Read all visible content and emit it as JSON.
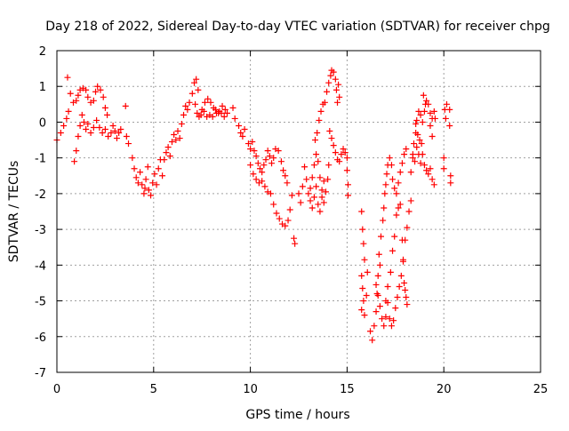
{
  "chart_data": {
    "type": "scatter",
    "title": "Day 218 of 2022, Sidereal Day-to-day VTEC variation (SDTVAR) for receiver chpg",
    "xlabel": "GPS time / hours",
    "ylabel": "SDTVAR / TECUs",
    "xlim": [
      0,
      25
    ],
    "ylim": [
      -7,
      2
    ],
    "x_ticks": [
      0,
      5,
      10,
      15,
      20,
      25
    ],
    "y_ticks": [
      2,
      1,
      0,
      -1,
      -2,
      -3,
      -4,
      -5,
      -6,
      -7
    ],
    "grid": true,
    "legend": "none",
    "marker": "plus",
    "color": "#ff0000",
    "series": [
      {
        "points": [
          [
            0.0,
            -0.5
          ],
          [
            0.2,
            -0.3
          ],
          [
            0.35,
            -0.1
          ],
          [
            0.5,
            0.1
          ],
          [
            0.6,
            0.3
          ],
          [
            0.55,
            1.25
          ],
          [
            0.7,
            0.8
          ],
          [
            0.85,
            0.55
          ],
          [
            1.0,
            0.6
          ],
          [
            1.1,
            0.75
          ],
          [
            1.2,
            0.9
          ],
          [
            1.35,
            0.95
          ],
          [
            1.5,
            0.9
          ],
          [
            1.6,
            0.7
          ],
          [
            1.75,
            0.55
          ],
          [
            1.9,
            0.6
          ],
          [
            2.0,
            0.85
          ],
          [
            2.1,
            1.0
          ],
          [
            2.25,
            0.9
          ],
          [
            2.4,
            0.7
          ],
          [
            2.5,
            0.4
          ],
          [
            2.6,
            0.2
          ],
          [
            0.9,
            -1.1
          ],
          [
            1.0,
            -0.8
          ],
          [
            1.1,
            -0.4
          ],
          [
            1.2,
            -0.1
          ],
          [
            1.3,
            0.2
          ],
          [
            1.4,
            0.0
          ],
          [
            1.5,
            -0.2
          ],
          [
            1.6,
            -0.05
          ],
          [
            1.75,
            -0.3
          ],
          [
            1.9,
            -0.15
          ],
          [
            2.05,
            0.05
          ],
          [
            2.2,
            -0.15
          ],
          [
            2.35,
            -0.3
          ],
          [
            2.5,
            -0.2
          ],
          [
            2.65,
            -0.4
          ],
          [
            2.8,
            -0.3
          ],
          [
            2.9,
            -0.1
          ],
          [
            3.0,
            -0.25
          ],
          [
            3.1,
            -0.45
          ],
          [
            3.2,
            -0.3
          ],
          [
            3.3,
            -0.2
          ],
          [
            3.55,
            0.45
          ],
          [
            3.6,
            -0.4
          ],
          [
            3.7,
            -0.6
          ],
          [
            3.9,
            -1.0
          ],
          [
            4.0,
            -1.3
          ],
          [
            4.1,
            -1.55
          ],
          [
            4.2,
            -1.7
          ],
          [
            4.3,
            -1.4
          ],
          [
            4.4,
            -1.75
          ],
          [
            4.5,
            -2.0
          ],
          [
            4.6,
            -1.6
          ],
          [
            4.7,
            -1.25
          ],
          [
            4.55,
            -1.85
          ],
          [
            4.75,
            -1.9
          ],
          [
            4.85,
            -2.05
          ],
          [
            4.95,
            -1.7
          ],
          [
            5.05,
            -1.45
          ],
          [
            5.15,
            -1.75
          ],
          [
            5.25,
            -1.3
          ],
          [
            5.35,
            -1.05
          ],
          [
            5.45,
            -1.5
          ],
          [
            5.55,
            -1.05
          ],
          [
            5.65,
            -0.85
          ],
          [
            5.75,
            -0.7
          ],
          [
            5.85,
            -0.95
          ],
          [
            5.95,
            -0.55
          ],
          [
            6.05,
            -0.35
          ],
          [
            6.15,
            -0.5
          ],
          [
            6.25,
            -0.25
          ],
          [
            6.35,
            -0.45
          ],
          [
            6.45,
            -0.05
          ],
          [
            6.55,
            0.2
          ],
          [
            6.65,
            0.45
          ],
          [
            6.75,
            0.35
          ],
          [
            6.85,
            0.55
          ],
          [
            7.0,
            0.8
          ],
          [
            7.1,
            1.1
          ],
          [
            7.2,
            1.2
          ],
          [
            7.3,
            0.9
          ],
          [
            7.15,
            0.5
          ],
          [
            7.25,
            0.25
          ],
          [
            7.35,
            0.15
          ],
          [
            7.5,
            0.35
          ],
          [
            7.65,
            0.55
          ],
          [
            7.8,
            0.65
          ],
          [
            7.95,
            0.55
          ],
          [
            8.1,
            0.4
          ],
          [
            8.25,
            0.25
          ],
          [
            8.4,
            0.3
          ],
          [
            8.55,
            0.45
          ],
          [
            8.7,
            0.35
          ],
          [
            8.8,
            0.25
          ],
          [
            7.45,
            0.2
          ],
          [
            7.6,
            0.3
          ],
          [
            7.75,
            0.15
          ],
          [
            7.9,
            0.2
          ],
          [
            8.05,
            0.15
          ],
          [
            8.2,
            0.35
          ],
          [
            8.35,
            0.25
          ],
          [
            8.5,
            0.25
          ],
          [
            8.65,
            0.15
          ],
          [
            9.1,
            0.4
          ],
          [
            9.2,
            0.1
          ],
          [
            9.4,
            -0.1
          ],
          [
            9.5,
            -0.3
          ],
          [
            9.6,
            -0.4
          ],
          [
            9.7,
            -0.2
          ],
          [
            9.9,
            -0.6
          ],
          [
            10.0,
            -0.75
          ],
          [
            10.1,
            -0.55
          ],
          [
            10.2,
            -0.8
          ],
          [
            10.3,
            -0.95
          ],
          [
            10.4,
            -1.15
          ],
          [
            10.5,
            -1.3
          ],
          [
            10.6,
            -1.4
          ],
          [
            10.7,
            -1.2
          ],
          [
            10.8,
            -1.05
          ],
          [
            10.9,
            -0.8
          ],
          [
            11.0,
            -0.95
          ],
          [
            11.1,
            -1.15
          ],
          [
            11.2,
            -1.0
          ],
          [
            11.3,
            -0.75
          ],
          [
            11.45,
            -0.8
          ],
          [
            11.6,
            -1.1
          ],
          [
            11.7,
            -1.35
          ],
          [
            11.8,
            -1.5
          ],
          [
            11.9,
            -1.7
          ],
          [
            10.0,
            -1.2
          ],
          [
            10.15,
            -1.45
          ],
          [
            10.3,
            -1.6
          ],
          [
            10.45,
            -1.7
          ],
          [
            10.6,
            -1.65
          ],
          [
            10.75,
            -1.8
          ],
          [
            10.9,
            -1.95
          ],
          [
            11.05,
            -2.0
          ],
          [
            11.2,
            -2.3
          ],
          [
            11.35,
            -2.55
          ],
          [
            11.5,
            -2.7
          ],
          [
            11.65,
            -2.85
          ],
          [
            11.8,
            -2.9
          ],
          [
            11.95,
            -2.75
          ],
          [
            12.05,
            -2.45
          ],
          [
            12.15,
            -2.05
          ],
          [
            12.25,
            -3.25
          ],
          [
            12.3,
            -3.4
          ],
          [
            12.5,
            -2.0
          ],
          [
            12.6,
            -2.25
          ],
          [
            12.7,
            -1.8
          ],
          [
            12.8,
            -1.25
          ],
          [
            12.9,
            -1.6
          ],
          [
            13.0,
            -2.0
          ],
          [
            13.1,
            -1.85
          ],
          [
            13.2,
            -1.55
          ],
          [
            13.3,
            -1.2
          ],
          [
            13.4,
            -0.9
          ],
          [
            13.5,
            -1.1
          ],
          [
            13.6,
            -1.55
          ],
          [
            13.7,
            -1.9
          ],
          [
            13.8,
            -2.25
          ],
          [
            13.9,
            -1.95
          ],
          [
            14.0,
            -1.6
          ],
          [
            14.05,
            -1.2
          ],
          [
            13.1,
            -2.2
          ],
          [
            13.2,
            -2.4
          ],
          [
            13.3,
            -2.1
          ],
          [
            13.4,
            -1.8
          ],
          [
            13.5,
            -2.3
          ],
          [
            13.6,
            -2.5
          ],
          [
            13.7,
            -2.1
          ],
          [
            13.8,
            -1.65
          ],
          [
            13.35,
            -0.5
          ],
          [
            13.45,
            -0.3
          ],
          [
            13.55,
            0.05
          ],
          [
            13.65,
            0.3
          ],
          [
            13.75,
            0.5
          ],
          [
            13.85,
            0.55
          ],
          [
            13.95,
            0.85
          ],
          [
            14.05,
            1.1
          ],
          [
            14.15,
            1.3
          ],
          [
            14.2,
            1.45
          ],
          [
            14.3,
            1.4
          ],
          [
            14.4,
            1.2
          ],
          [
            14.45,
            0.9
          ],
          [
            14.5,
            0.55
          ],
          [
            14.55,
            1.05
          ],
          [
            14.6,
            0.7
          ],
          [
            14.1,
            -0.25
          ],
          [
            14.2,
            -0.45
          ],
          [
            14.3,
            -0.65
          ],
          [
            14.4,
            -0.85
          ],
          [
            14.5,
            -1.05
          ],
          [
            14.6,
            -1.1
          ],
          [
            14.7,
            -0.9
          ],
          [
            14.8,
            -0.75
          ],
          [
            14.9,
            -0.85
          ],
          [
            15.0,
            -1.0
          ],
          [
            15.0,
            -1.35
          ],
          [
            15.05,
            -1.75
          ],
          [
            15.05,
            -2.05
          ],
          [
            15.75,
            -2.5
          ],
          [
            15.8,
            -3.0
          ],
          [
            15.85,
            -3.4
          ],
          [
            15.9,
            -3.85
          ],
          [
            15.75,
            -4.3
          ],
          [
            15.8,
            -4.65
          ],
          [
            15.85,
            -5.0
          ],
          [
            15.75,
            -5.25
          ],
          [
            15.9,
            -5.4
          ],
          [
            16.0,
            -4.85
          ],
          [
            16.05,
            -4.2
          ],
          [
            16.2,
            -5.85
          ],
          [
            16.3,
            -6.1
          ],
          [
            16.4,
            -5.7
          ],
          [
            16.5,
            -5.3
          ],
          [
            16.55,
            -4.8
          ],
          [
            16.6,
            -4.3
          ],
          [
            16.7,
            -4.0
          ],
          [
            16.65,
            -3.7
          ],
          [
            16.75,
            -3.2
          ],
          [
            16.85,
            -2.75
          ],
          [
            16.9,
            -2.4
          ],
          [
            16.95,
            -2.0
          ],
          [
            17.0,
            -1.75
          ],
          [
            17.05,
            -1.45
          ],
          [
            17.1,
            -1.2
          ],
          [
            17.2,
            -1.0
          ],
          [
            17.3,
            -1.2
          ],
          [
            17.35,
            -1.6
          ],
          [
            17.45,
            -1.85
          ],
          [
            17.55,
            -2.0
          ],
          [
            17.65,
            -1.7
          ],
          [
            17.75,
            -1.4
          ],
          [
            17.85,
            -1.15
          ],
          [
            17.95,
            -0.9
          ],
          [
            18.05,
            -0.75
          ],
          [
            16.5,
            -4.55
          ],
          [
            16.6,
            -4.85
          ],
          [
            16.7,
            -5.15
          ],
          [
            16.8,
            -5.5
          ],
          [
            16.9,
            -5.7
          ],
          [
            17.0,
            -5.45
          ],
          [
            17.1,
            -5.05
          ],
          [
            17.2,
            -5.5
          ],
          [
            17.3,
            -5.7
          ],
          [
            17.4,
            -5.55
          ],
          [
            17.5,
            -5.2
          ],
          [
            17.6,
            -4.9
          ],
          [
            17.7,
            -4.6
          ],
          [
            17.8,
            -4.3
          ],
          [
            17.9,
            -3.85
          ],
          [
            18.0,
            -3.3
          ],
          [
            18.1,
            -2.95
          ],
          [
            18.2,
            -2.5
          ],
          [
            18.3,
            -2.2
          ],
          [
            17.0,
            -5.0
          ],
          [
            17.1,
            -4.6
          ],
          [
            17.25,
            -4.2
          ],
          [
            17.35,
            -3.6
          ],
          [
            17.45,
            -3.2
          ],
          [
            17.55,
            -2.6
          ],
          [
            17.65,
            -2.4
          ],
          [
            17.75,
            -2.3
          ],
          [
            17.85,
            -3.3
          ],
          [
            17.9,
            -3.9
          ],
          [
            17.95,
            -4.5
          ],
          [
            18.05,
            -4.9
          ],
          [
            18.1,
            -5.1
          ],
          [
            18.0,
            -4.7
          ],
          [
            18.3,
            -1.4
          ],
          [
            18.4,
            -1.0
          ],
          [
            18.45,
            -0.6
          ],
          [
            18.55,
            -0.3
          ],
          [
            18.6,
            0.05
          ],
          [
            18.7,
            0.3
          ],
          [
            18.8,
            0.2
          ],
          [
            18.9,
            0.0
          ],
          [
            19.0,
            0.3
          ],
          [
            19.1,
            0.6
          ],
          [
            19.2,
            0.5
          ],
          [
            19.3,
            0.25
          ],
          [
            19.4,
            0.1
          ],
          [
            19.5,
            0.3
          ],
          [
            19.55,
            0.1
          ],
          [
            18.4,
            -0.9
          ],
          [
            18.5,
            -1.1
          ],
          [
            18.6,
            -0.7
          ],
          [
            18.7,
            -0.9
          ],
          [
            18.8,
            -1.15
          ],
          [
            18.9,
            -0.9
          ],
          [
            19.0,
            -1.2
          ],
          [
            19.1,
            -1.35
          ],
          [
            19.2,
            -1.45
          ],
          [
            19.3,
            -1.3
          ],
          [
            19.4,
            -1.6
          ],
          [
            19.5,
            -1.75
          ],
          [
            19.3,
            -0.1
          ],
          [
            19.4,
            -0.4
          ],
          [
            18.55,
            -0.05
          ],
          [
            18.65,
            -0.35
          ],
          [
            18.75,
            -0.5
          ],
          [
            18.85,
            -0.6
          ],
          [
            18.95,
            0.75
          ],
          [
            19.05,
            0.5
          ],
          [
            20.0,
            -1.0
          ],
          [
            20.0,
            -1.3
          ],
          [
            20.05,
            0.35
          ],
          [
            20.1,
            0.1
          ],
          [
            20.15,
            0.5
          ],
          [
            20.3,
            0.35
          ],
          [
            20.3,
            -0.1
          ],
          [
            20.35,
            -1.5
          ],
          [
            20.35,
            -1.7
          ]
        ]
      }
    ]
  }
}
